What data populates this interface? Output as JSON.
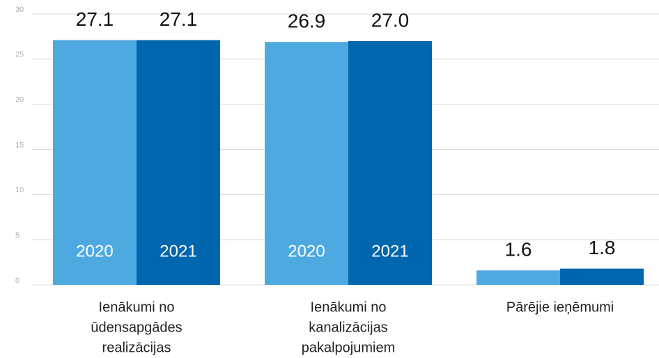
{
  "chart_data": {
    "type": "bar",
    "categories": [
      [
        "Ienākumi no",
        "ūdensapgādes",
        "realizācijas"
      ],
      [
        "Ienākumi no",
        "kanalizācijas",
        "pakalpojumiem"
      ],
      [
        "Pārējie ieņēmumi"
      ]
    ],
    "series": [
      {
        "name": "2020",
        "color": "#4fa9e1",
        "values": [
          27.1,
          26.9,
          1.6
        ],
        "value_labels": [
          "27.1",
          "26.9",
          "1.6"
        ]
      },
      {
        "name": "2021",
        "color": "#0066ad",
        "values": [
          27.1,
          27.0,
          1.8
        ],
        "value_labels": [
          "27.1",
          "27.0",
          "1.8"
        ]
      }
    ],
    "ylim": [
      0,
      30
    ],
    "yticks": [
      0,
      5,
      10,
      15,
      20,
      25,
      30
    ],
    "grid": true
  }
}
